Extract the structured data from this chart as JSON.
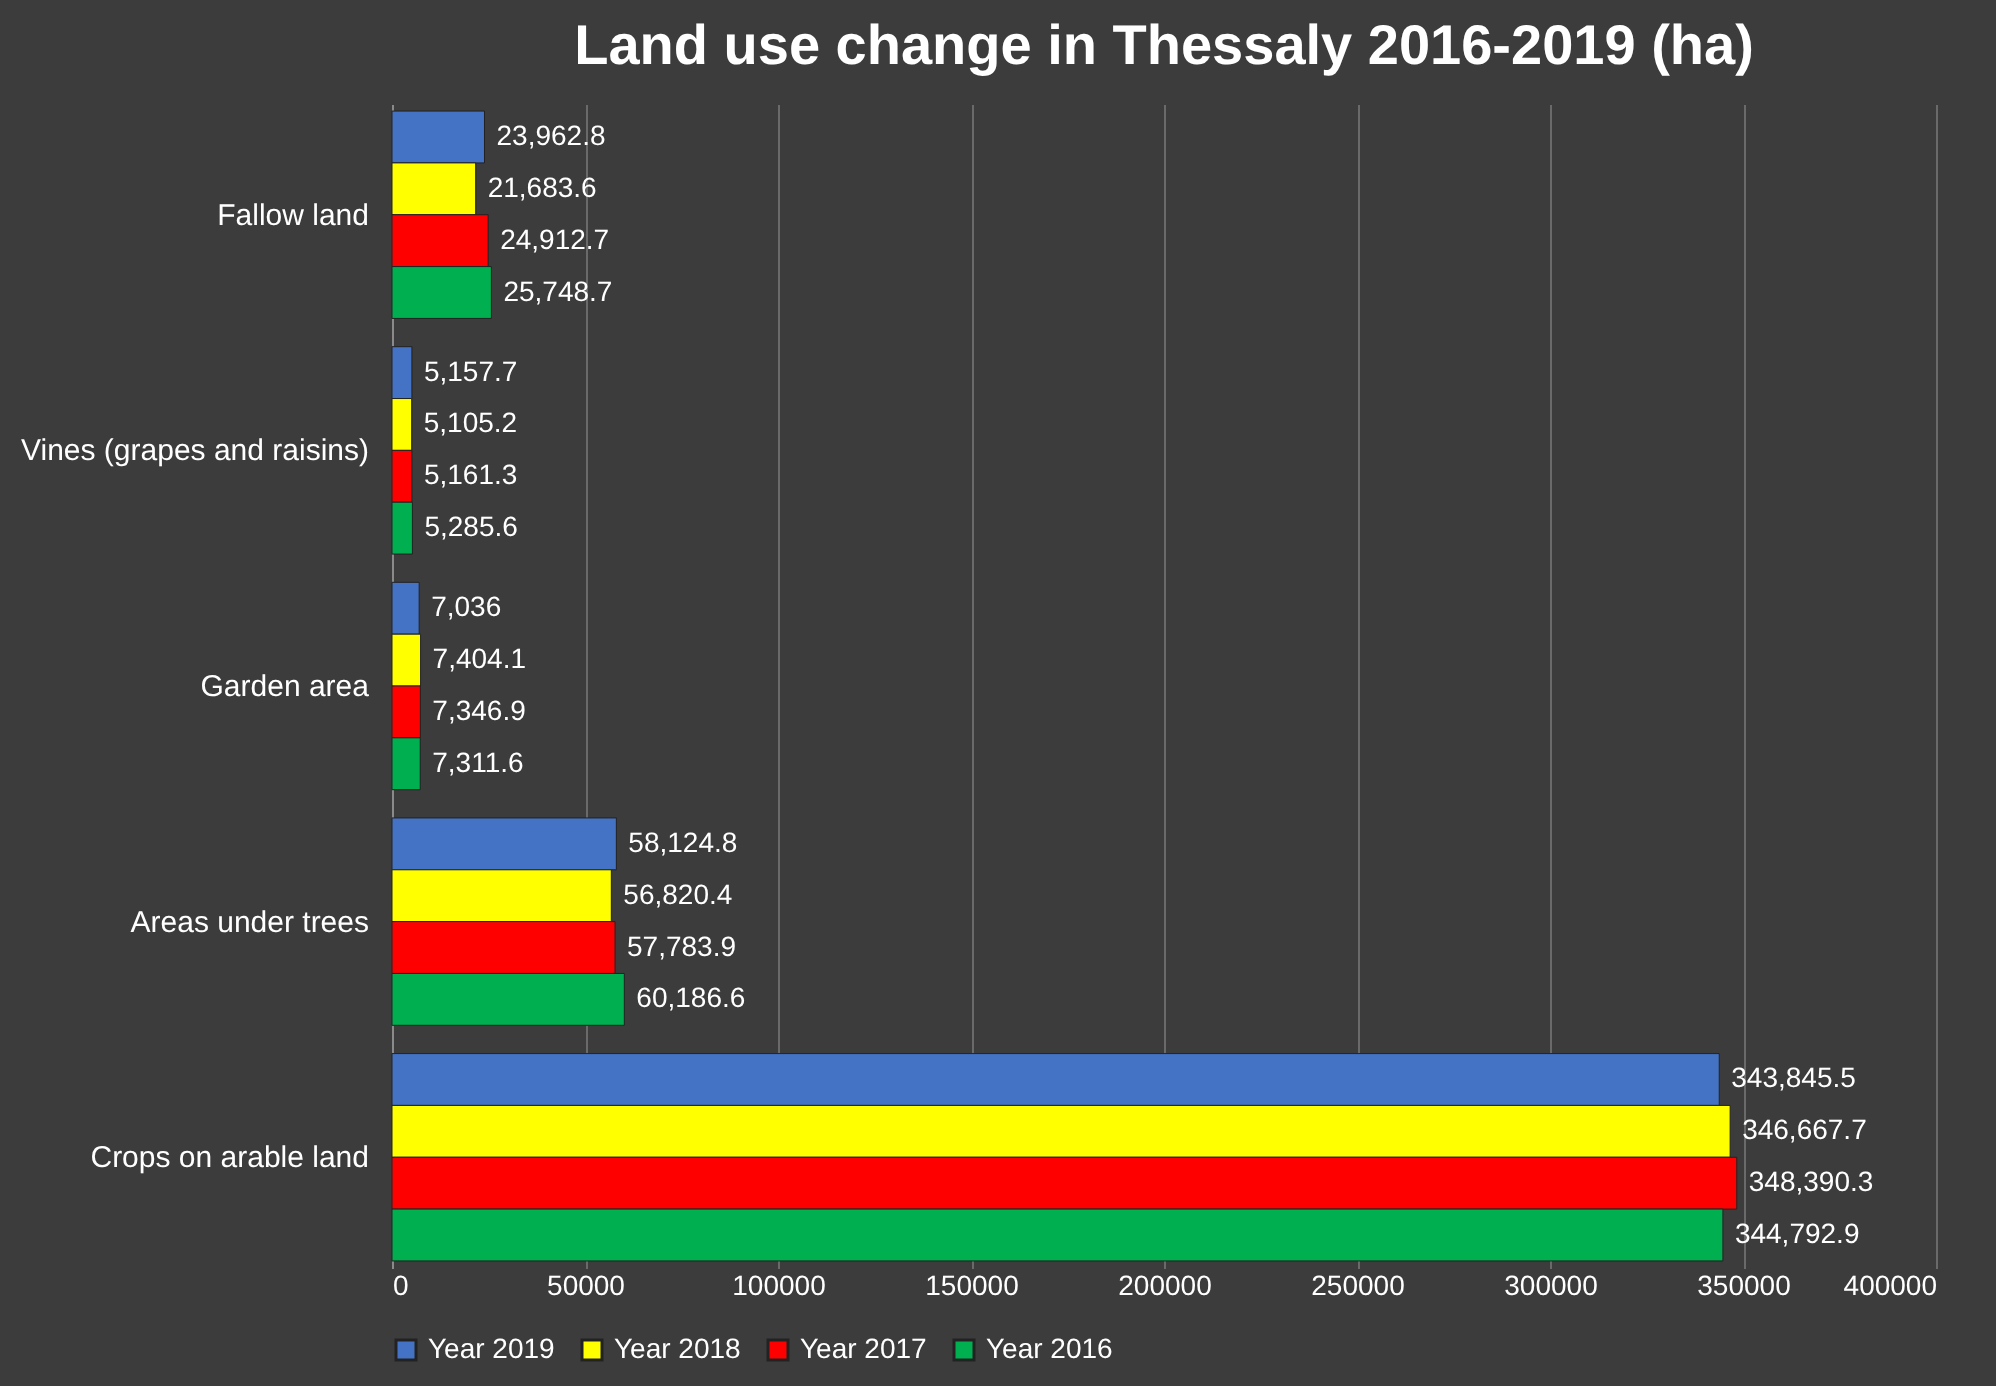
{
  "chart_data": {
    "type": "bar",
    "orientation": "horizontal",
    "title": "Land use change in Thessaly 2016-2019 (ha)",
    "categories": [
      "Fallow land",
      "Vines (grapes and raisins)",
      "Garden area",
      "Areas under trees",
      "Crops on arable land"
    ],
    "series": [
      {
        "name": "Year 2019",
        "color": "#4472c4",
        "values": [
          23962.8,
          5157.7,
          7036,
          58124.8,
          343845.5
        ]
      },
      {
        "name": "Year 2018",
        "color": "#ffff00",
        "values": [
          21683.6,
          5105.2,
          7404.1,
          56820.4,
          346667.7
        ]
      },
      {
        "name": "Year 2017",
        "color": "#ff0000",
        "values": [
          24912.7,
          5161.3,
          7346.9,
          57783.9,
          348390.3
        ]
      },
      {
        "name": "Year 2016",
        "color": "#00b050",
        "values": [
          25748.7,
          5285.6,
          7311.6,
          60186.6,
          344792.9
        ]
      }
    ],
    "xlim": [
      0,
      400000
    ],
    "xticks": [
      0,
      50000,
      100000,
      150000,
      200000,
      250000,
      300000,
      350000,
      400000
    ],
    "grid": "x",
    "legend": "bottom",
    "value_labels": [
      [
        "23,962.8",
        "5,157.7",
        "7,036",
        "58,124.8",
        "343,845.5"
      ],
      [
        "21,683.6",
        "5,105.2",
        "7,404.1",
        "56,820.4",
        "346,667.7"
      ],
      [
        "24,912.7",
        "5,161.3",
        "7,346.9",
        "57,783.9",
        "348,390.3"
      ],
      [
        "25,748.7",
        "5,285.6",
        "7,311.6",
        "60,186.6",
        "344,792.9"
      ]
    ]
  }
}
